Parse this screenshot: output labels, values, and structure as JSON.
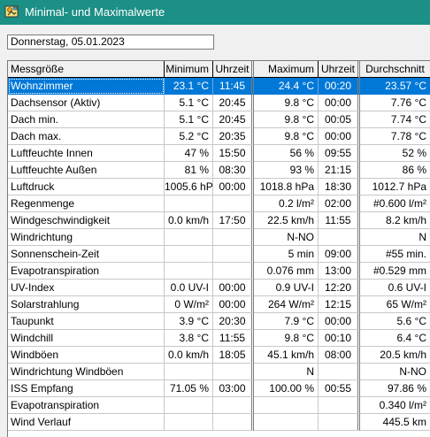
{
  "window": {
    "title": "Minimal- und Maximalwerte",
    "icon": "app-weather-icon"
  },
  "date_field": {
    "value": "Donnerstag, 05.01.2023"
  },
  "table": {
    "headers": [
      "Messgröße",
      "Minimum",
      "Uhrzeit",
      "Maximum",
      "Uhrzeit",
      "Durchschnitt"
    ],
    "selected_row": 0,
    "rows": [
      [
        "Wohnzimmer",
        "23.1 °C",
        "11:45",
        "24.4 °C",
        "00:20",
        "23.57 °C"
      ],
      [
        "Dachsensor (Aktiv)",
        "5.1 °C",
        "20:45",
        "9.8 °C",
        "00:00",
        "7.76 °C"
      ],
      [
        "Dach min.",
        "5.1 °C",
        "20:45",
        "9.8 °C",
        "00:05",
        "7.74 °C"
      ],
      [
        "Dach max.",
        "5.2 °C",
        "20:35",
        "9.8 °C",
        "00:00",
        "7.78 °C"
      ],
      [
        "Luftfeuchte Innen",
        "47 %",
        "15:50",
        "56 %",
        "09:55",
        "52 %"
      ],
      [
        "Luftfeuchte Außen",
        "81 %",
        "08:30",
        "93 %",
        "21:15",
        "86 %"
      ],
      [
        "Luftdruck",
        "1005.6 hPa",
        "00:00",
        "1018.8 hPa",
        "18:30",
        "1012.7 hPa"
      ],
      [
        "Regenmenge",
        "",
        "",
        "0.2 l/m²",
        "02:00",
        "#0.600 l/m²"
      ],
      [
        "Windgeschwindigkeit",
        "0.0 km/h",
        "17:50",
        "22.5 km/h",
        "11:55",
        "8.2 km/h"
      ],
      [
        "Windrichtung",
        "",
        "",
        "N-NO",
        "",
        "N"
      ],
      [
        "Sonnenschein-Zeit",
        "",
        "",
        "5 min",
        "09:00",
        "#55 min."
      ],
      [
        "Evapotranspiration",
        "",
        "",
        "0.076 mm",
        "13:00",
        "#0.529 mm"
      ],
      [
        "UV-Index",
        "0.0 UV-I",
        "00:00",
        "0.9 UV-I",
        "12:20",
        "0.6 UV-I"
      ],
      [
        "Solarstrahlung",
        "0 W/m²",
        "00:00",
        "264 W/m²",
        "12:15",
        "65 W/m²"
      ],
      [
        "Taupunkt",
        "3.9 °C",
        "20:30",
        "7.9 °C",
        "00:00",
        "5.6 °C"
      ],
      [
        "Windchill",
        "3.8 °C",
        "11:55",
        "9.8 °C",
        "00:10",
        "6.4 °C"
      ],
      [
        "Windböen",
        "0.0 km/h",
        "18:05",
        "45.1 km/h",
        "08:00",
        "20.5 km/h"
      ],
      [
        "Windrichtung Windböen",
        "",
        "",
        "N",
        "",
        "N-NO"
      ],
      [
        "ISS Empfang",
        "71.05 %",
        "03:00",
        "100.00 %",
        "00:55",
        "97.86 %"
      ],
      [
        "Evapotranspiration",
        "",
        "",
        "",
        "",
        "0.340 l/m²"
      ],
      [
        "Wind Verlauf",
        "",
        "",
        "",
        "",
        "445.5 km"
      ]
    ]
  }
}
